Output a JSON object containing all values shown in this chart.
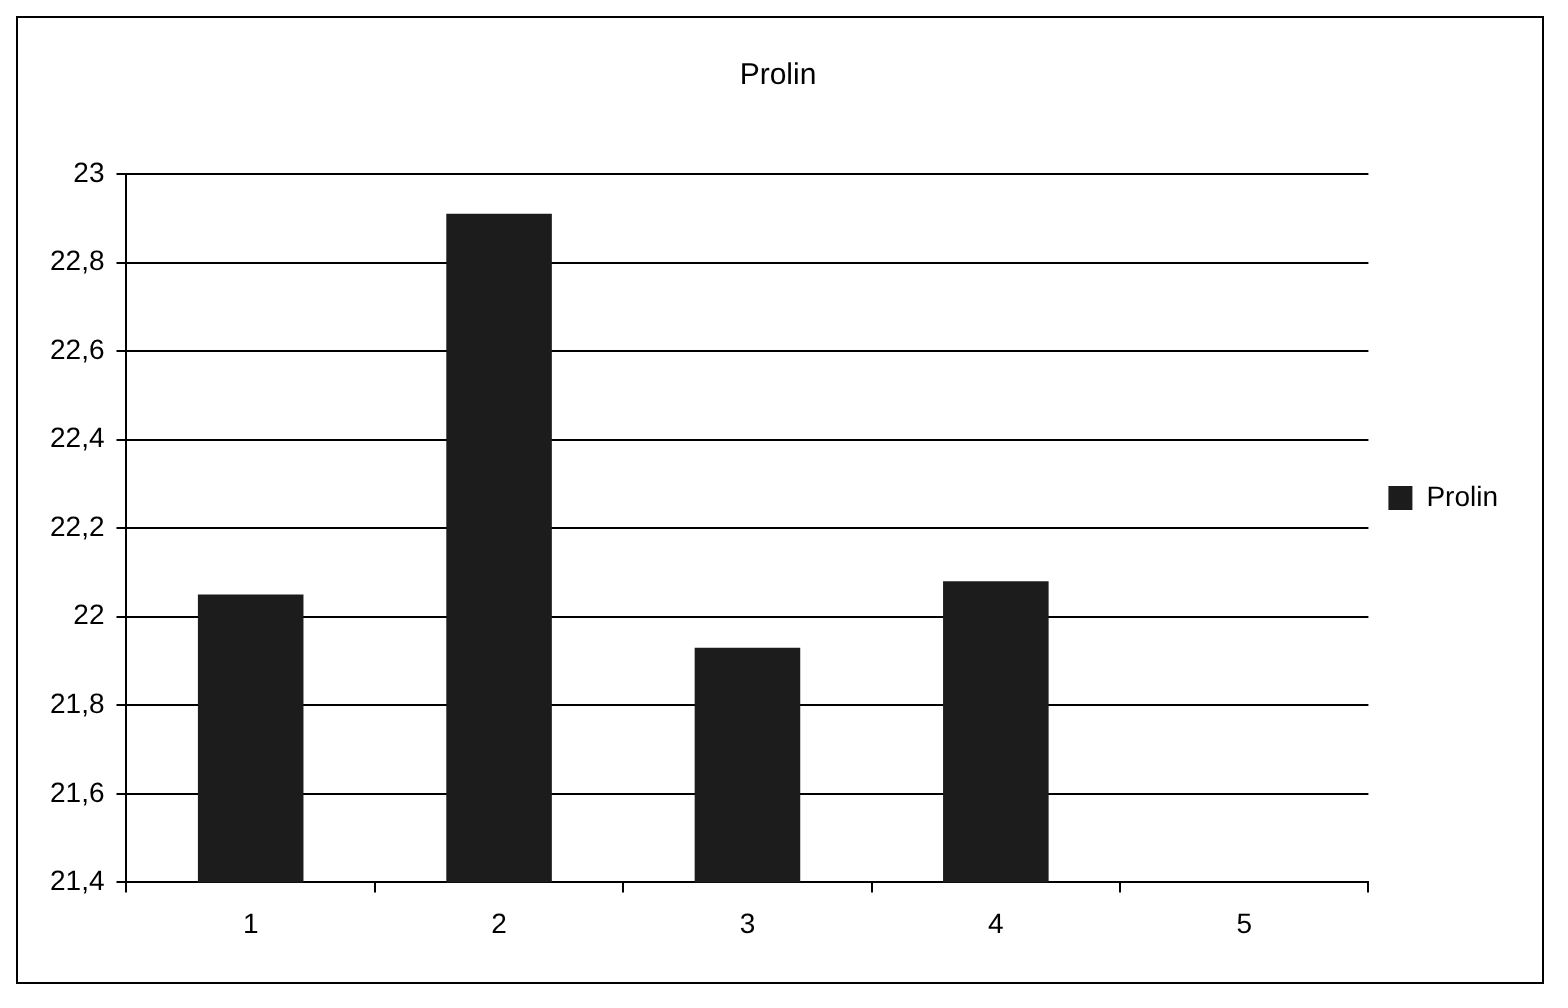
{
  "chart_data": {
    "type": "bar",
    "title": "Prolin",
    "categories": [
      "1",
      "2",
      "3",
      "4",
      "5"
    ],
    "series": [
      {
        "name": "Prolin",
        "color": "#1c1c1c",
        "values": [
          22.05,
          22.91,
          21.93,
          22.08,
          null
        ]
      }
    ],
    "ylim": [
      21.4,
      23
    ],
    "yticks": [
      {
        "value": 21.4,
        "label": "21,4"
      },
      {
        "value": 21.6,
        "label": "21,6"
      },
      {
        "value": 21.8,
        "label": "21,8"
      },
      22,
      {
        "value": 22.2,
        "label": "22,2"
      },
      {
        "value": 22.4,
        "label": "22,4"
      },
      {
        "value": 22.6,
        "label": "22,6"
      },
      {
        "value": 22.8,
        "label": "22,8"
      },
      23
    ],
    "grid": "y",
    "legend": "right"
  }
}
